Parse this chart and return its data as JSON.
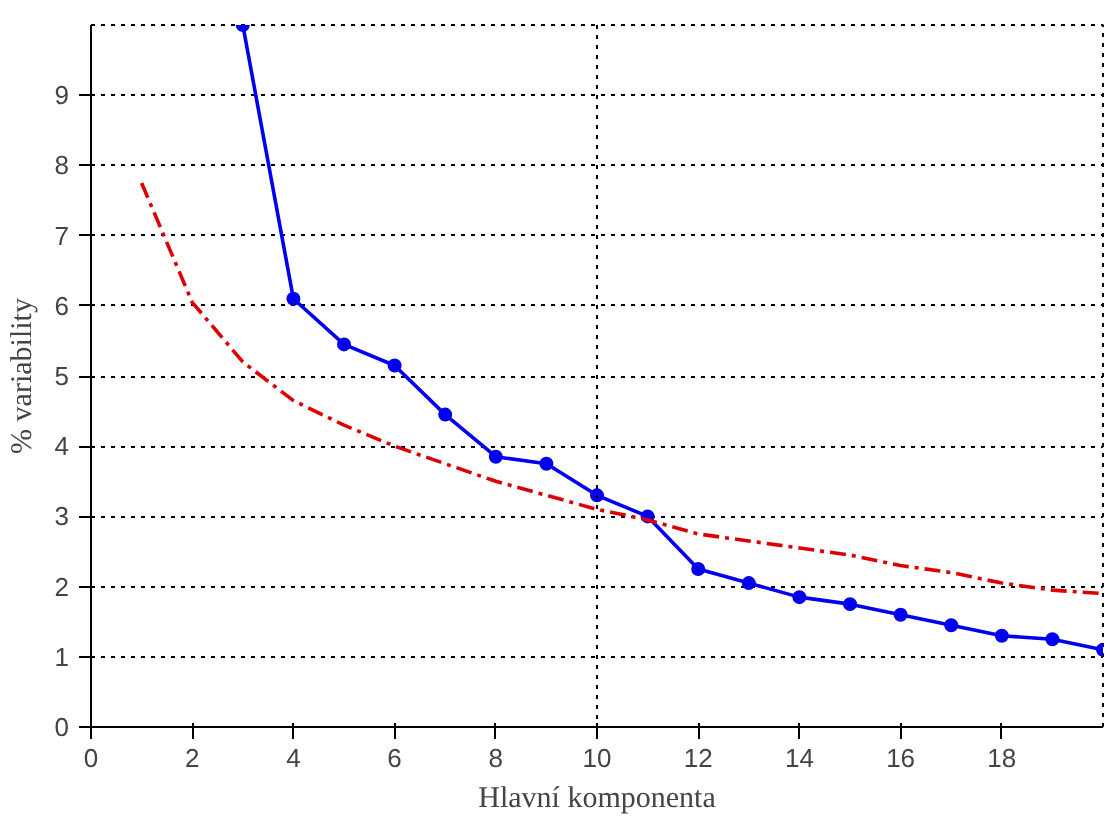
{
  "chart_data": {
    "type": "line",
    "xlabel": "Hlavní komponenta",
    "ylabel": "% variability",
    "xlim": [
      0,
      20
    ],
    "ylim": [
      0,
      10
    ],
    "xticks": [
      0,
      2,
      4,
      6,
      8,
      10,
      12,
      14,
      16,
      18
    ],
    "yticks": [
      0,
      1,
      2,
      3,
      4,
      5,
      6,
      7,
      8,
      9
    ],
    "grid": "y",
    "ref_lines": [
      {
        "axis": "x",
        "value": 10,
        "color": "#000000",
        "line_style": "dotted"
      }
    ],
    "series": [
      {
        "color": "#0000ee",
        "marker": "circle",
        "line_style": "solid",
        "x": [
          3,
          4,
          5,
          6,
          7,
          8,
          9,
          10,
          11,
          12,
          13,
          14,
          15,
          16,
          17,
          18,
          19,
          20
        ],
        "values": [
          10,
          6.1,
          5.45,
          5.15,
          4.45,
          3.85,
          3.75,
          3.3,
          3.0,
          2.25,
          2.05,
          1.85,
          1.75,
          1.6,
          1.45,
          1.3,
          1.25,
          1.1
        ]
      },
      {
        "color": "#dd0000",
        "marker": "none",
        "line_style": "dashed",
        "x": [
          1,
          2,
          3,
          4,
          5,
          6,
          7,
          8,
          9,
          10,
          11,
          12,
          13,
          14,
          15,
          16,
          17,
          18,
          19,
          20
        ],
        "values": [
          7.75,
          6.05,
          5.2,
          4.65,
          4.3,
          4.0,
          3.75,
          3.5,
          3.3,
          3.1,
          2.95,
          2.75,
          2.65,
          2.55,
          2.45,
          2.3,
          2.2,
          2.05,
          1.95,
          1.9
        ]
      }
    ]
  }
}
